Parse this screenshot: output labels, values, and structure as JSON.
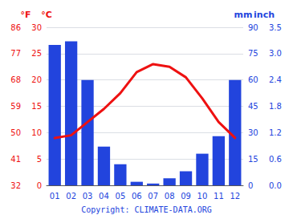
{
  "chart_data": {
    "type": "bar",
    "categories": [
      "01",
      "02",
      "03",
      "04",
      "05",
      "06",
      "07",
      "08",
      "09",
      "10",
      "11",
      "12"
    ],
    "series": [
      {
        "type": "bar",
        "axis": "y2",
        "color": "#2244dd",
        "values": [
          80,
          82,
          60,
          22,
          12,
          2,
          1,
          4,
          8,
          18,
          28,
          60
        ]
      },
      {
        "type": "line",
        "axis": "y",
        "color": "#ee1111",
        "values": [
          9.0,
          9.5,
          12.0,
          14.5,
          17.5,
          21.5,
          23.0,
          22.5,
          20.5,
          16.5,
          12.0,
          9.0
        ]
      }
    ],
    "ylabel": "°C",
    "ylim": [
      0,
      30
    ],
    "yticks": [
      0,
      5,
      10,
      15,
      20,
      25,
      30
    ],
    "y2label": "mm",
    "y2lim": [
      0,
      90
    ],
    "y2ticks": [
      0,
      15,
      30,
      45,
      60,
      75,
      90
    ],
    "y3label": "°F",
    "y3lim": [
      32,
      86
    ],
    "y3ticks": [
      32,
      41,
      50,
      59,
      68,
      77,
      86
    ],
    "y4label": "inch",
    "y4lim": [
      0,
      90
    ],
    "y4ticks": [
      {
        "value": 0,
        "label": "0.0"
      },
      {
        "value": 15,
        "label": "0.6"
      },
      {
        "value": 30,
        "label": "1.2"
      },
      {
        "value": 45,
        "label": "1.8"
      },
      {
        "value": 60,
        "label": "2.4"
      },
      {
        "value": 75,
        "label": "3.0"
      },
      {
        "value": 90,
        "label": "3.5"
      }
    ],
    "grid": true,
    "annotation": "Copyright: CLIMATE-DATA.ORG"
  }
}
